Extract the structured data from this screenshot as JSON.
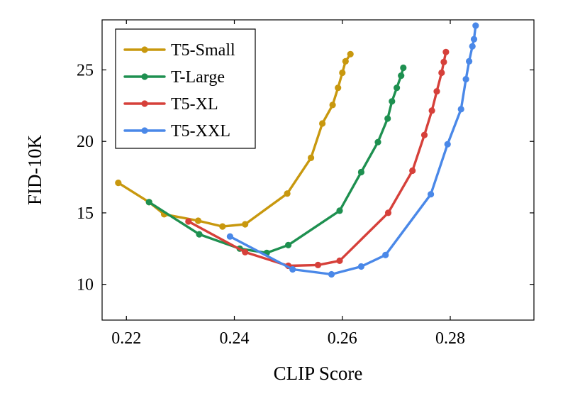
{
  "chart_data": {
    "type": "line",
    "title": "",
    "xlabel": "CLIP Score",
    "ylabel": "FID-10K",
    "xlim": [
      0.2155,
      0.2955
    ],
    "ylim": [
      7.5,
      28.5
    ],
    "xticks": [
      0.22,
      0.24,
      0.26,
      0.28
    ],
    "xtick_labels": [
      "0.22",
      "0.24",
      "0.26",
      "0.28"
    ],
    "yticks": [
      10,
      15,
      20,
      25
    ],
    "ytick_labels": [
      "10",
      "15",
      "20",
      "25"
    ],
    "grid": false,
    "legend_position": "top-left",
    "series": [
      {
        "name": "T5-Small",
        "color": "#C8980E",
        "points": [
          [
            0.2185,
            17.1
          ],
          [
            0.2242,
            15.75
          ],
          [
            0.227,
            14.9
          ],
          [
            0.2333,
            14.45
          ],
          [
            0.2378,
            14.05
          ],
          [
            0.242,
            14.2
          ],
          [
            0.2498,
            16.35
          ],
          [
            0.2542,
            18.85
          ],
          [
            0.2563,
            21.25
          ],
          [
            0.2582,
            22.55
          ],
          [
            0.2592,
            23.75
          ],
          [
            0.26,
            24.8
          ],
          [
            0.2606,
            25.6
          ],
          [
            0.2615,
            26.1
          ]
        ]
      },
      {
        "name": "T-Large",
        "color": "#1E9050",
        "points": [
          [
            0.2242,
            15.75
          ],
          [
            0.2335,
            13.5
          ],
          [
            0.241,
            12.5
          ],
          [
            0.246,
            12.2
          ],
          [
            0.25,
            12.75
          ],
          [
            0.2595,
            15.15
          ],
          [
            0.2635,
            17.85
          ],
          [
            0.2666,
            19.95
          ],
          [
            0.2684,
            21.6
          ],
          [
            0.2692,
            22.8
          ],
          [
            0.2701,
            23.75
          ],
          [
            0.2709,
            24.6
          ],
          [
            0.2713,
            25.15
          ]
        ]
      },
      {
        "name": "T5-XL",
        "color": "#D6403A",
        "points": [
          [
            0.2315,
            14.4
          ],
          [
            0.242,
            12.25
          ],
          [
            0.25,
            11.3
          ],
          [
            0.2555,
            11.35
          ],
          [
            0.2595,
            11.65
          ],
          [
            0.2685,
            15.0
          ],
          [
            0.273,
            17.95
          ],
          [
            0.2752,
            20.45
          ],
          [
            0.2766,
            22.15
          ],
          [
            0.2775,
            23.5
          ],
          [
            0.2784,
            24.8
          ],
          [
            0.2788,
            25.55
          ],
          [
            0.2792,
            26.25
          ]
        ]
      },
      {
        "name": "T5-XXL",
        "color": "#4A88E8",
        "points": [
          [
            0.2392,
            13.35
          ],
          [
            0.2508,
            11.05
          ],
          [
            0.258,
            10.7
          ],
          [
            0.2635,
            11.25
          ],
          [
            0.268,
            12.05
          ],
          [
            0.2764,
            16.3
          ],
          [
            0.2795,
            19.8
          ],
          [
            0.282,
            22.25
          ],
          [
            0.2829,
            24.35
          ],
          [
            0.2835,
            25.6
          ],
          [
            0.2841,
            26.65
          ],
          [
            0.2844,
            27.15
          ],
          [
            0.2847,
            28.1
          ]
        ]
      }
    ]
  }
}
